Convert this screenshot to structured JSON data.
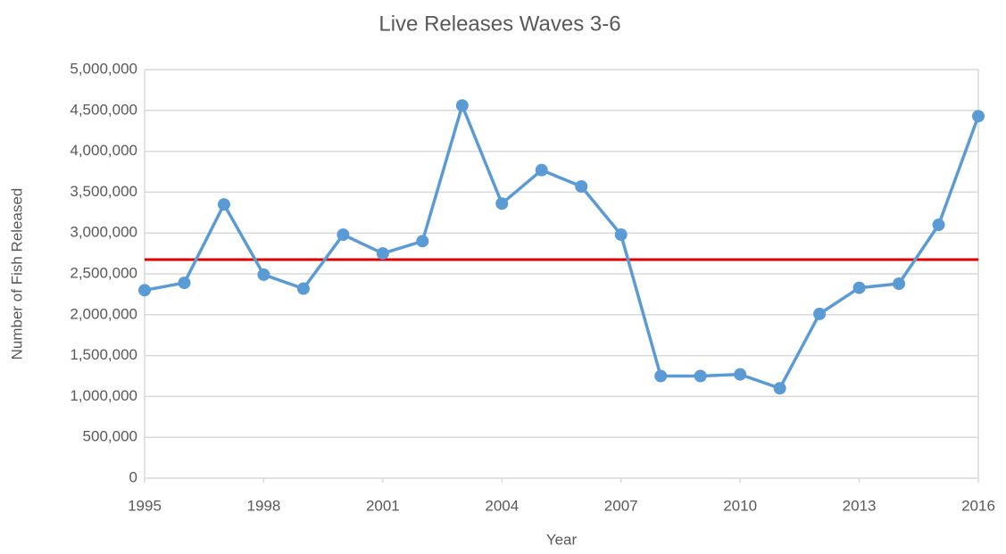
{
  "chart_data": {
    "type": "line",
    "title": "Live Releases Waves 3-6",
    "x_label": "Year",
    "y_label": "Number of Fish Released",
    "x": [
      1995,
      1996,
      1997,
      1998,
      1999,
      2000,
      2001,
      2002,
      2003,
      2004,
      2005,
      2006,
      2007,
      2008,
      2009,
      2010,
      2011,
      2012,
      2013,
      2014,
      2015,
      2016
    ],
    "series": [
      {
        "color": "#5b9bd5",
        "values": [
          2300000,
          2390000,
          3350000,
          2490000,
          2320000,
          2980000,
          2750000,
          2900000,
          4560000,
          3360000,
          3770000,
          3570000,
          2980000,
          1250000,
          1250000,
          1270000,
          1100000,
          2010000,
          2330000,
          2380000,
          3100000,
          4430000
        ]
      }
    ],
    "hline": 2675000,
    "hline_color": "#e00000",
    "xlim": [
      1995,
      2016
    ],
    "xticks": [
      1995,
      1998,
      2001,
      2004,
      2007,
      2010,
      2013,
      2016
    ],
    "ylim": [
      0,
      5000000
    ],
    "yticks": [
      0,
      {
        "value": 500000,
        "label": "500,000"
      },
      {
        "value": 1000000,
        "label": "1,000,000"
      },
      {
        "value": 1500000,
        "label": "1,500,000"
      },
      {
        "value": 2000000,
        "label": "2,000,000"
      },
      {
        "value": 2500000,
        "label": "2,500,000"
      },
      {
        "value": 3000000,
        "label": "3,000,000"
      },
      {
        "value": 3500000,
        "label": "3,500,000"
      },
      {
        "value": 4000000,
        "label": "4,000,000"
      },
      {
        "value": 4500000,
        "label": "4,500,000"
      },
      {
        "value": 5000000,
        "label": "5,000,000"
      }
    ],
    "grid": true
  }
}
